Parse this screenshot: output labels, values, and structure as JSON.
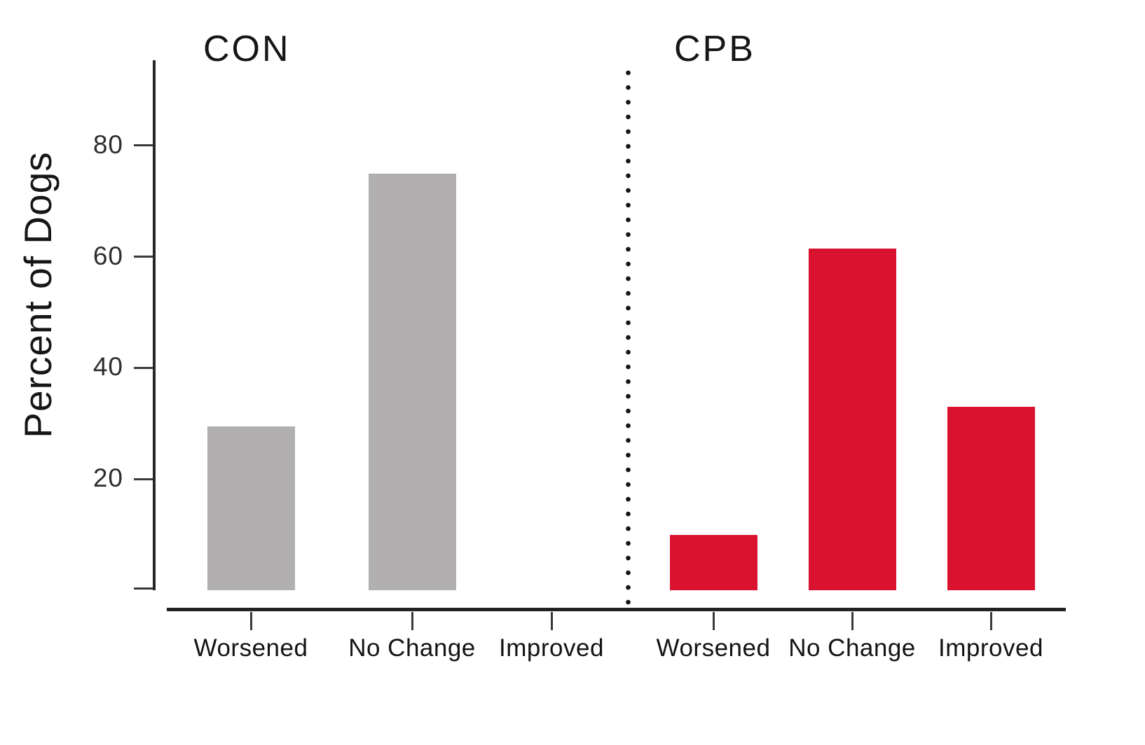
{
  "figure": {
    "background": "#ffffff",
    "axis_color": "#222222",
    "tick_text_color": "#2e2e2e",
    "label_text_color": "#131313"
  },
  "chart_data": {
    "type": "bar",
    "title": "",
    "xlabel": "",
    "ylabel": "Percent of Dogs",
    "ylim": [
      0,
      95
    ],
    "yticks": [
      80,
      60,
      40,
      20
    ],
    "categories": [
      "Worsened",
      "No Change",
      "Improved"
    ],
    "series": [
      {
        "name": "CON",
        "color": "#b1afb0",
        "values": [
          29.5,
          75,
          0
        ]
      },
      {
        "name": "CPB",
        "color": "#d8122f",
        "values": [
          10,
          61.5,
          33
        ]
      }
    ],
    "legend": "none",
    "grid": false,
    "group_separator": "dotted-vertical-line"
  }
}
